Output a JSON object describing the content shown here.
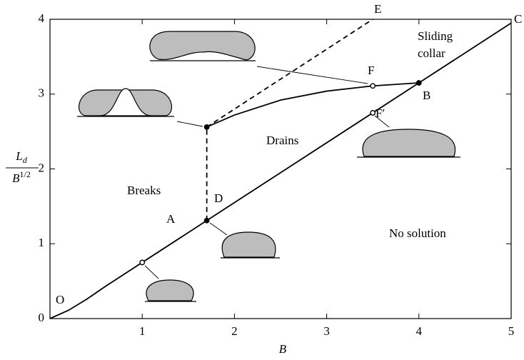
{
  "chart_data": {
    "type": "line",
    "xlabel": "B",
    "ylabel": {
      "numerator": "L",
      "numerator_subscript": "d",
      "denominator": "B",
      "denominator_superscript": "1/2"
    },
    "xlim": [
      0,
      5
    ],
    "ylim": [
      0,
      4
    ],
    "xticks": [
      1,
      2,
      3,
      4,
      5
    ],
    "yticks": [
      0,
      1,
      2,
      3,
      4
    ],
    "color": "#000000",
    "lines": [
      {
        "style": "solid",
        "x": [
          0,
          0.2,
          0.4,
          0.6,
          0.8,
          1,
          1.7,
          3.5,
          4,
          5
        ],
        "y": [
          0,
          0.11,
          0.26,
          0.43,
          0.59,
          0.75,
          1.31,
          2.75,
          3.15,
          3.95
        ]
      },
      {
        "style": "solid",
        "x": [
          1.7,
          2,
          2.5,
          3,
          3.5,
          4
        ],
        "y": [
          2.56,
          2.72,
          2.92,
          3.04,
          3.11,
          3.15
        ]
      },
      {
        "style": "dashed",
        "x": [
          1.7,
          1.7
        ],
        "y": [
          1.31,
          2.56
        ]
      },
      {
        "style": "dashed",
        "x": [
          1.7,
          3.5
        ],
        "y": [
          2.56,
          4
        ]
      }
    ],
    "points": {
      "x": [
        1,
        1.7,
        1.7,
        3.5,
        3.5,
        4
      ],
      "y": [
        0.75,
        1.31,
        2.56,
        3.11,
        2.75,
        3.15
      ],
      "filled": [
        false,
        true,
        true,
        false,
        false,
        true
      ]
    },
    "annotations": [
      "O",
      "A",
      "D",
      "E",
      "F",
      "F′",
      "B",
      "C",
      "Breaks",
      "Drains",
      "Sliding",
      "collar",
      "No solution"
    ]
  }
}
